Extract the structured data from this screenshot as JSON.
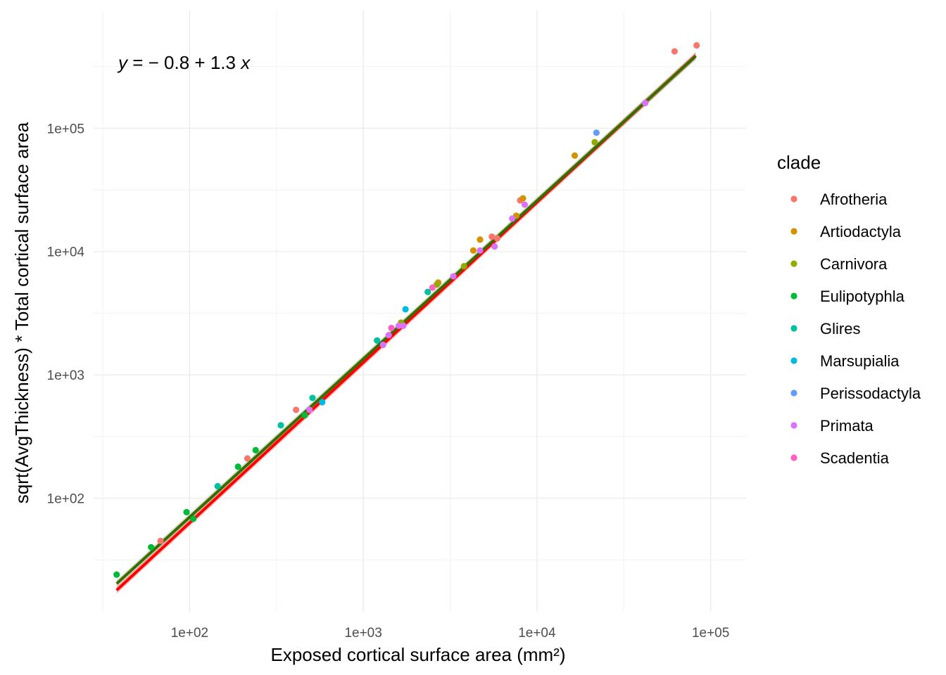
{
  "chart_data": {
    "type": "scatter",
    "scale": "log-log",
    "xlabel": "Exposed cortical surface area (mm²)",
    "ylabel": "sqrt(AvgThickness) * Total cortical surface area",
    "x_ticks": [
      {
        "value": 100,
        "label": "1e+02"
      },
      {
        "value": 1000,
        "label": "1e+03"
      },
      {
        "value": 10000,
        "label": "1e+04"
      },
      {
        "value": 100000,
        "label": "1e+05"
      }
    ],
    "y_ticks": [
      {
        "value": 100,
        "label": "1e+02"
      },
      {
        "value": 1000,
        "label": "1e+03"
      },
      {
        "value": 10000,
        "label": "1e+04"
      },
      {
        "value": 100000,
        "label": "1e+05"
      }
    ],
    "xlim": [
      28,
      160000
    ],
    "ylim": [
      12,
      900000
    ],
    "grid": true,
    "legend": {
      "title": "clade",
      "position": "right"
    },
    "equation": {
      "y": "y",
      "eq": " = − 0.8 + 1.3 ",
      "x": "x"
    },
    "fit_lines": [
      {
        "intercept": -0.8,
        "slope": 1.3,
        "color": "#ff0000",
        "x_range": [
          38,
          82000
        ]
      },
      {
        "intercept": -0.72,
        "slope": 1.283,
        "color": "#3a6b00",
        "x_range": [
          38,
          82000
        ]
      }
    ],
    "series": [
      {
        "name": "Afrotheria",
        "color": "#F8766D",
        "points": [
          [
            62000,
            420000
          ],
          [
            83000,
            470000
          ],
          [
            410,
            520
          ],
          [
            215,
            210
          ],
          [
            5900,
            12800
          ],
          [
            8000,
            26000
          ],
          [
            5500,
            13200
          ],
          [
            68,
            45
          ]
        ]
      },
      {
        "name": "Artiodactyla",
        "color": "#D39200",
        "points": [
          [
            16500,
            60000
          ],
          [
            8300,
            27000
          ],
          [
            4700,
            12500
          ],
          [
            7600,
            19500
          ],
          [
            4300,
            10200
          ],
          [
            2700,
            5600
          ]
        ]
      },
      {
        "name": "Carnivora",
        "color": "#93AA00",
        "points": [
          [
            21500,
            77000
          ],
          [
            2650,
            5400
          ],
          [
            3800,
            7600
          ],
          [
            1650,
            2650
          ]
        ]
      },
      {
        "name": "Eulipotyphla",
        "color": "#00BA38",
        "points": [
          [
            38,
            24
          ],
          [
            60,
            40
          ],
          [
            96,
            77
          ],
          [
            105,
            68
          ],
          [
            190,
            180
          ],
          [
            240,
            245
          ],
          [
            460,
            470
          ]
        ]
      },
      {
        "name": "Glires",
        "color": "#00C19F",
        "points": [
          [
            145,
            125
          ],
          [
            335,
            390
          ],
          [
            510,
            650
          ],
          [
            1200,
            1900
          ],
          [
            2350,
            4700
          ]
        ]
      },
      {
        "name": "Marsupialia",
        "color": "#00B9E3",
        "points": [
          [
            580,
            600
          ],
          [
            1750,
            3400
          ]
        ]
      },
      {
        "name": "Perissodactyla",
        "color": "#619CFF",
        "points": [
          [
            22000,
            92000
          ]
        ]
      },
      {
        "name": "Primata",
        "color": "#DB72FB",
        "points": [
          [
            42000,
            160000
          ],
          [
            8500,
            24000
          ],
          [
            5700,
            11000
          ],
          [
            7200,
            18500
          ],
          [
            4700,
            10200
          ],
          [
            3300,
            6300
          ],
          [
            1700,
            2500
          ],
          [
            1300,
            1750
          ],
          [
            1400,
            2100
          ],
          [
            1600,
            2500
          ],
          [
            490,
            520
          ]
        ]
      },
      {
        "name": "Scadentia",
        "color": "#FF61C3",
        "points": [
          [
            1450,
            2400
          ],
          [
            2500,
            5100
          ]
        ]
      }
    ]
  }
}
